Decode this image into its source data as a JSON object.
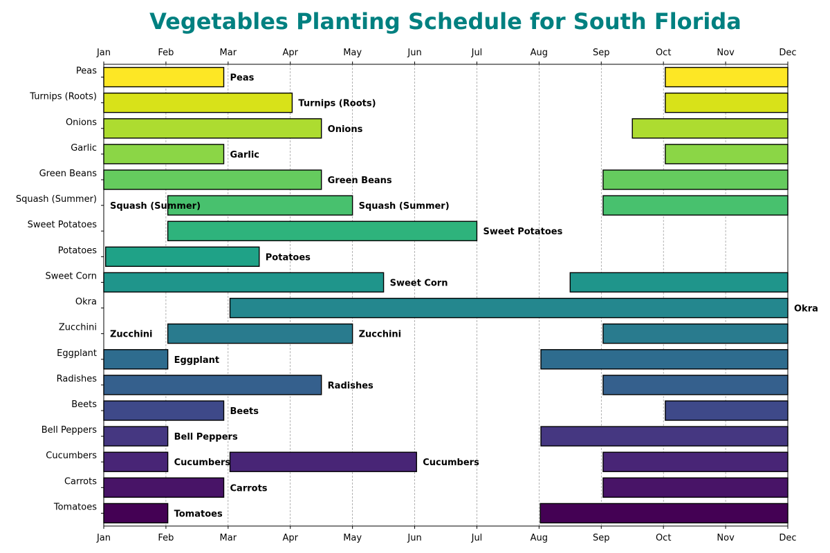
{
  "chart_data": {
    "type": "bar",
    "orientation": "horizontal-gantt",
    "title": "Vegetables Planting Schedule for South Florida",
    "title_color": "#008080",
    "x_ticks": [
      "Jan",
      "Feb",
      "Mar",
      "Apr",
      "May",
      "Jun",
      "Jul",
      "Aug",
      "Sep",
      "Oct",
      "Nov",
      "Dec"
    ],
    "x_axis_positions": [
      "top",
      "bottom"
    ],
    "xlim": [
      1,
      12
    ],
    "grid": "vertical-dashed",
    "categories": [
      "Tomatoes",
      "Carrots",
      "Cucumbers",
      "Bell Peppers",
      "Beets",
      "Radishes",
      "Eggplant",
      "Zucchini",
      "Okra",
      "Sweet Corn",
      "Potatoes",
      "Sweet Potatoes",
      "Squash (Summer)",
      "Green Beans",
      "Garlic",
      "Onions",
      "Turnips (Roots)",
      "Peas"
    ],
    "colors": [
      "#440154",
      "#481467",
      "#482576",
      "#453781",
      "#3e4989",
      "#35608d",
      "#2e6c8e",
      "#297b8e",
      "#24878e",
      "#1f958b",
      "#1fa287",
      "#2eb37c",
      "#48c16e",
      "#65cb5e",
      "#8bd646",
      "#addc30",
      "#d8e219",
      "#fde725"
    ],
    "series": [
      {
        "category": "Tomatoes",
        "labels": [
          "Tomatoes"
        ],
        "segments": [
          [
            1,
            2.03
          ],
          [
            8.02,
            12
          ]
        ]
      },
      {
        "category": "Carrots",
        "labels": [
          "Carrots"
        ],
        "segments": [
          [
            1,
            2.93
          ],
          [
            9.03,
            12
          ]
        ]
      },
      {
        "category": "Cucumbers",
        "labels": [
          "Cucumbers",
          "Cucumbers"
        ],
        "segments": [
          [
            1,
            2.03
          ],
          [
            3.03,
            6.03
          ],
          [
            9.03,
            12
          ]
        ]
      },
      {
        "category": "Bell Peppers",
        "labels": [
          "Bell Peppers"
        ],
        "segments": [
          [
            1,
            2.03
          ],
          [
            8.03,
            12
          ]
        ]
      },
      {
        "category": "Beets",
        "labels": [
          "Beets"
        ],
        "segments": [
          [
            1,
            2.93
          ],
          [
            10.03,
            12
          ]
        ]
      },
      {
        "category": "Radishes",
        "labels": [
          "Radishes"
        ],
        "segments": [
          [
            1,
            4.5
          ],
          [
            9.03,
            12
          ]
        ]
      },
      {
        "category": "Eggplant",
        "labels": [
          "Eggplant"
        ],
        "segments": [
          [
            1,
            2.03
          ],
          [
            8.03,
            12
          ]
        ]
      },
      {
        "category": "Zucchini",
        "labels": [
          "Zucchini",
          "Zucchini"
        ],
        "segments": [
          [
            1,
            1
          ],
          [
            2.03,
            5
          ],
          [
            9.03,
            12
          ]
        ]
      },
      {
        "category": "Okra",
        "labels": [
          "Okra"
        ],
        "segments": [
          [
            3.03,
            12
          ]
        ]
      },
      {
        "category": "Sweet Corn",
        "labels": [
          "Sweet Corn"
        ],
        "segments": [
          [
            1,
            5.5
          ],
          [
            8.5,
            12
          ]
        ]
      },
      {
        "category": "Potatoes",
        "labels": [
          "Potatoes"
        ],
        "segments": [
          [
            1.03,
            3.5
          ]
        ]
      },
      {
        "category": "Sweet Potatoes",
        "labels": [
          "Sweet Potatoes"
        ],
        "segments": [
          [
            2.03,
            7
          ]
        ]
      },
      {
        "category": "Squash (Summer)",
        "labels": [
          "Squash (Summer)",
          "Squash (Summer)"
        ],
        "segments": [
          [
            1,
            1
          ],
          [
            2.03,
            5
          ],
          [
            9.03,
            12
          ]
        ]
      },
      {
        "category": "Green Beans",
        "labels": [
          "Green Beans"
        ],
        "segments": [
          [
            1,
            4.5
          ],
          [
            9.03,
            12
          ]
        ]
      },
      {
        "category": "Garlic",
        "labels": [
          "Garlic"
        ],
        "segments": [
          [
            1,
            2.93
          ],
          [
            10.03,
            12
          ]
        ]
      },
      {
        "category": "Onions",
        "labels": [
          "Onions"
        ],
        "segments": [
          [
            1,
            4.5
          ],
          [
            9.5,
            12
          ]
        ]
      },
      {
        "category": "Turnips (Roots)",
        "labels": [
          "Turnips (Roots)"
        ],
        "segments": [
          [
            1,
            4.03
          ],
          [
            10.03,
            12
          ]
        ]
      },
      {
        "category": "Peas",
        "labels": [
          "Peas"
        ],
        "segments": [
          [
            1,
            2.93
          ],
          [
            10.03,
            12
          ]
        ]
      }
    ]
  }
}
